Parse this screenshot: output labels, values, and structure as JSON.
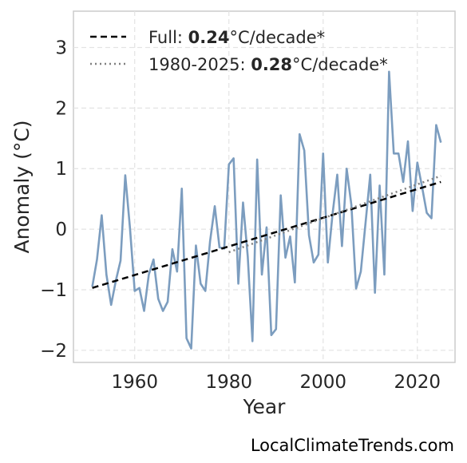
{
  "chart_data": {
    "type": "line",
    "xlabel": "Year",
    "ylabel": "Anomaly (°C)",
    "xlim": [
      1947,
      2028
    ],
    "ylim": [
      -2.2,
      3.6
    ],
    "xticks": [
      1960,
      1980,
      2000,
      2020
    ],
    "yticks": [
      -2,
      -1,
      0,
      1,
      2,
      3
    ],
    "ytick_labels": [
      "−2",
      "−1",
      "0",
      "1",
      "2",
      "3"
    ],
    "grid": true,
    "legend_position": "top-left",
    "series": [
      {
        "color": "#7c9dbf",
        "x": [
          1951,
          1952,
          1953,
          1954,
          1955,
          1956,
          1957,
          1958,
          1959,
          1960,
          1961,
          1962,
          1963,
          1964,
          1965,
          1966,
          1967,
          1968,
          1969,
          1970,
          1971,
          1972,
          1973,
          1974,
          1975,
          1976,
          1977,
          1978,
          1979,
          1980,
          1981,
          1982,
          1983,
          1984,
          1985,
          1986,
          1987,
          1988,
          1989,
          1990,
          1991,
          1992,
          1993,
          1994,
          1995,
          1996,
          1997,
          1998,
          1999,
          2000,
          2001,
          2002,
          2003,
          2004,
          2005,
          2006,
          2007,
          2008,
          2009,
          2010,
          2011,
          2012,
          2013,
          2014,
          2015,
          2016,
          2017,
          2018,
          2019,
          2020,
          2021,
          2022,
          2023,
          2024,
          2025
        ],
        "values": [
          -0.95,
          -0.5,
          0.23,
          -0.75,
          -1.25,
          -0.85,
          -0.52,
          0.89,
          0.02,
          -1.02,
          -0.97,
          -1.35,
          -0.75,
          -0.5,
          -1.15,
          -1.35,
          -1.2,
          -0.33,
          -0.7,
          0.67,
          -1.8,
          -1.97,
          -0.27,
          -0.9,
          -1.02,
          -0.2,
          0.38,
          -0.3,
          -0.32,
          1.07,
          1.17,
          -0.9,
          0.44,
          -0.45,
          -1.85,
          1.15,
          -0.75,
          0.03,
          -1.75,
          -1.65,
          0.56,
          -0.47,
          -0.12,
          -0.88,
          1.57,
          1.3,
          -0.1,
          -0.55,
          -0.42,
          1.25,
          -0.55,
          0.25,
          0.9,
          -0.28,
          1.0,
          0.4,
          -0.98,
          -0.7,
          0.1,
          0.9,
          -1.05,
          0.72,
          -0.75,
          2.6,
          1.25,
          1.25,
          0.78,
          1.45,
          0.3,
          1.1,
          0.7,
          0.27,
          0.18,
          1.72,
          1.43
        ]
      },
      {
        "color": "#000000",
        "style": "dashed",
        "x": [
          1951,
          2025
        ],
        "values": [
          -0.97,
          0.78
        ]
      },
      {
        "color": "#808080",
        "style": "dotted",
        "x": [
          1980,
          2025
        ],
        "values": [
          -0.38,
          0.88
        ]
      }
    ],
    "legend": [
      {
        "prefix": "Full: ",
        "value": "0.24",
        "suffix": "°C/decade*",
        "style": "dashed",
        "color": "#000000"
      },
      {
        "prefix": "1980-2025: ",
        "value": "0.28",
        "suffix": "°C/decade*",
        "style": "dotted",
        "color": "#808080"
      }
    ]
  },
  "watermark": "LocalClimateTrends.com"
}
